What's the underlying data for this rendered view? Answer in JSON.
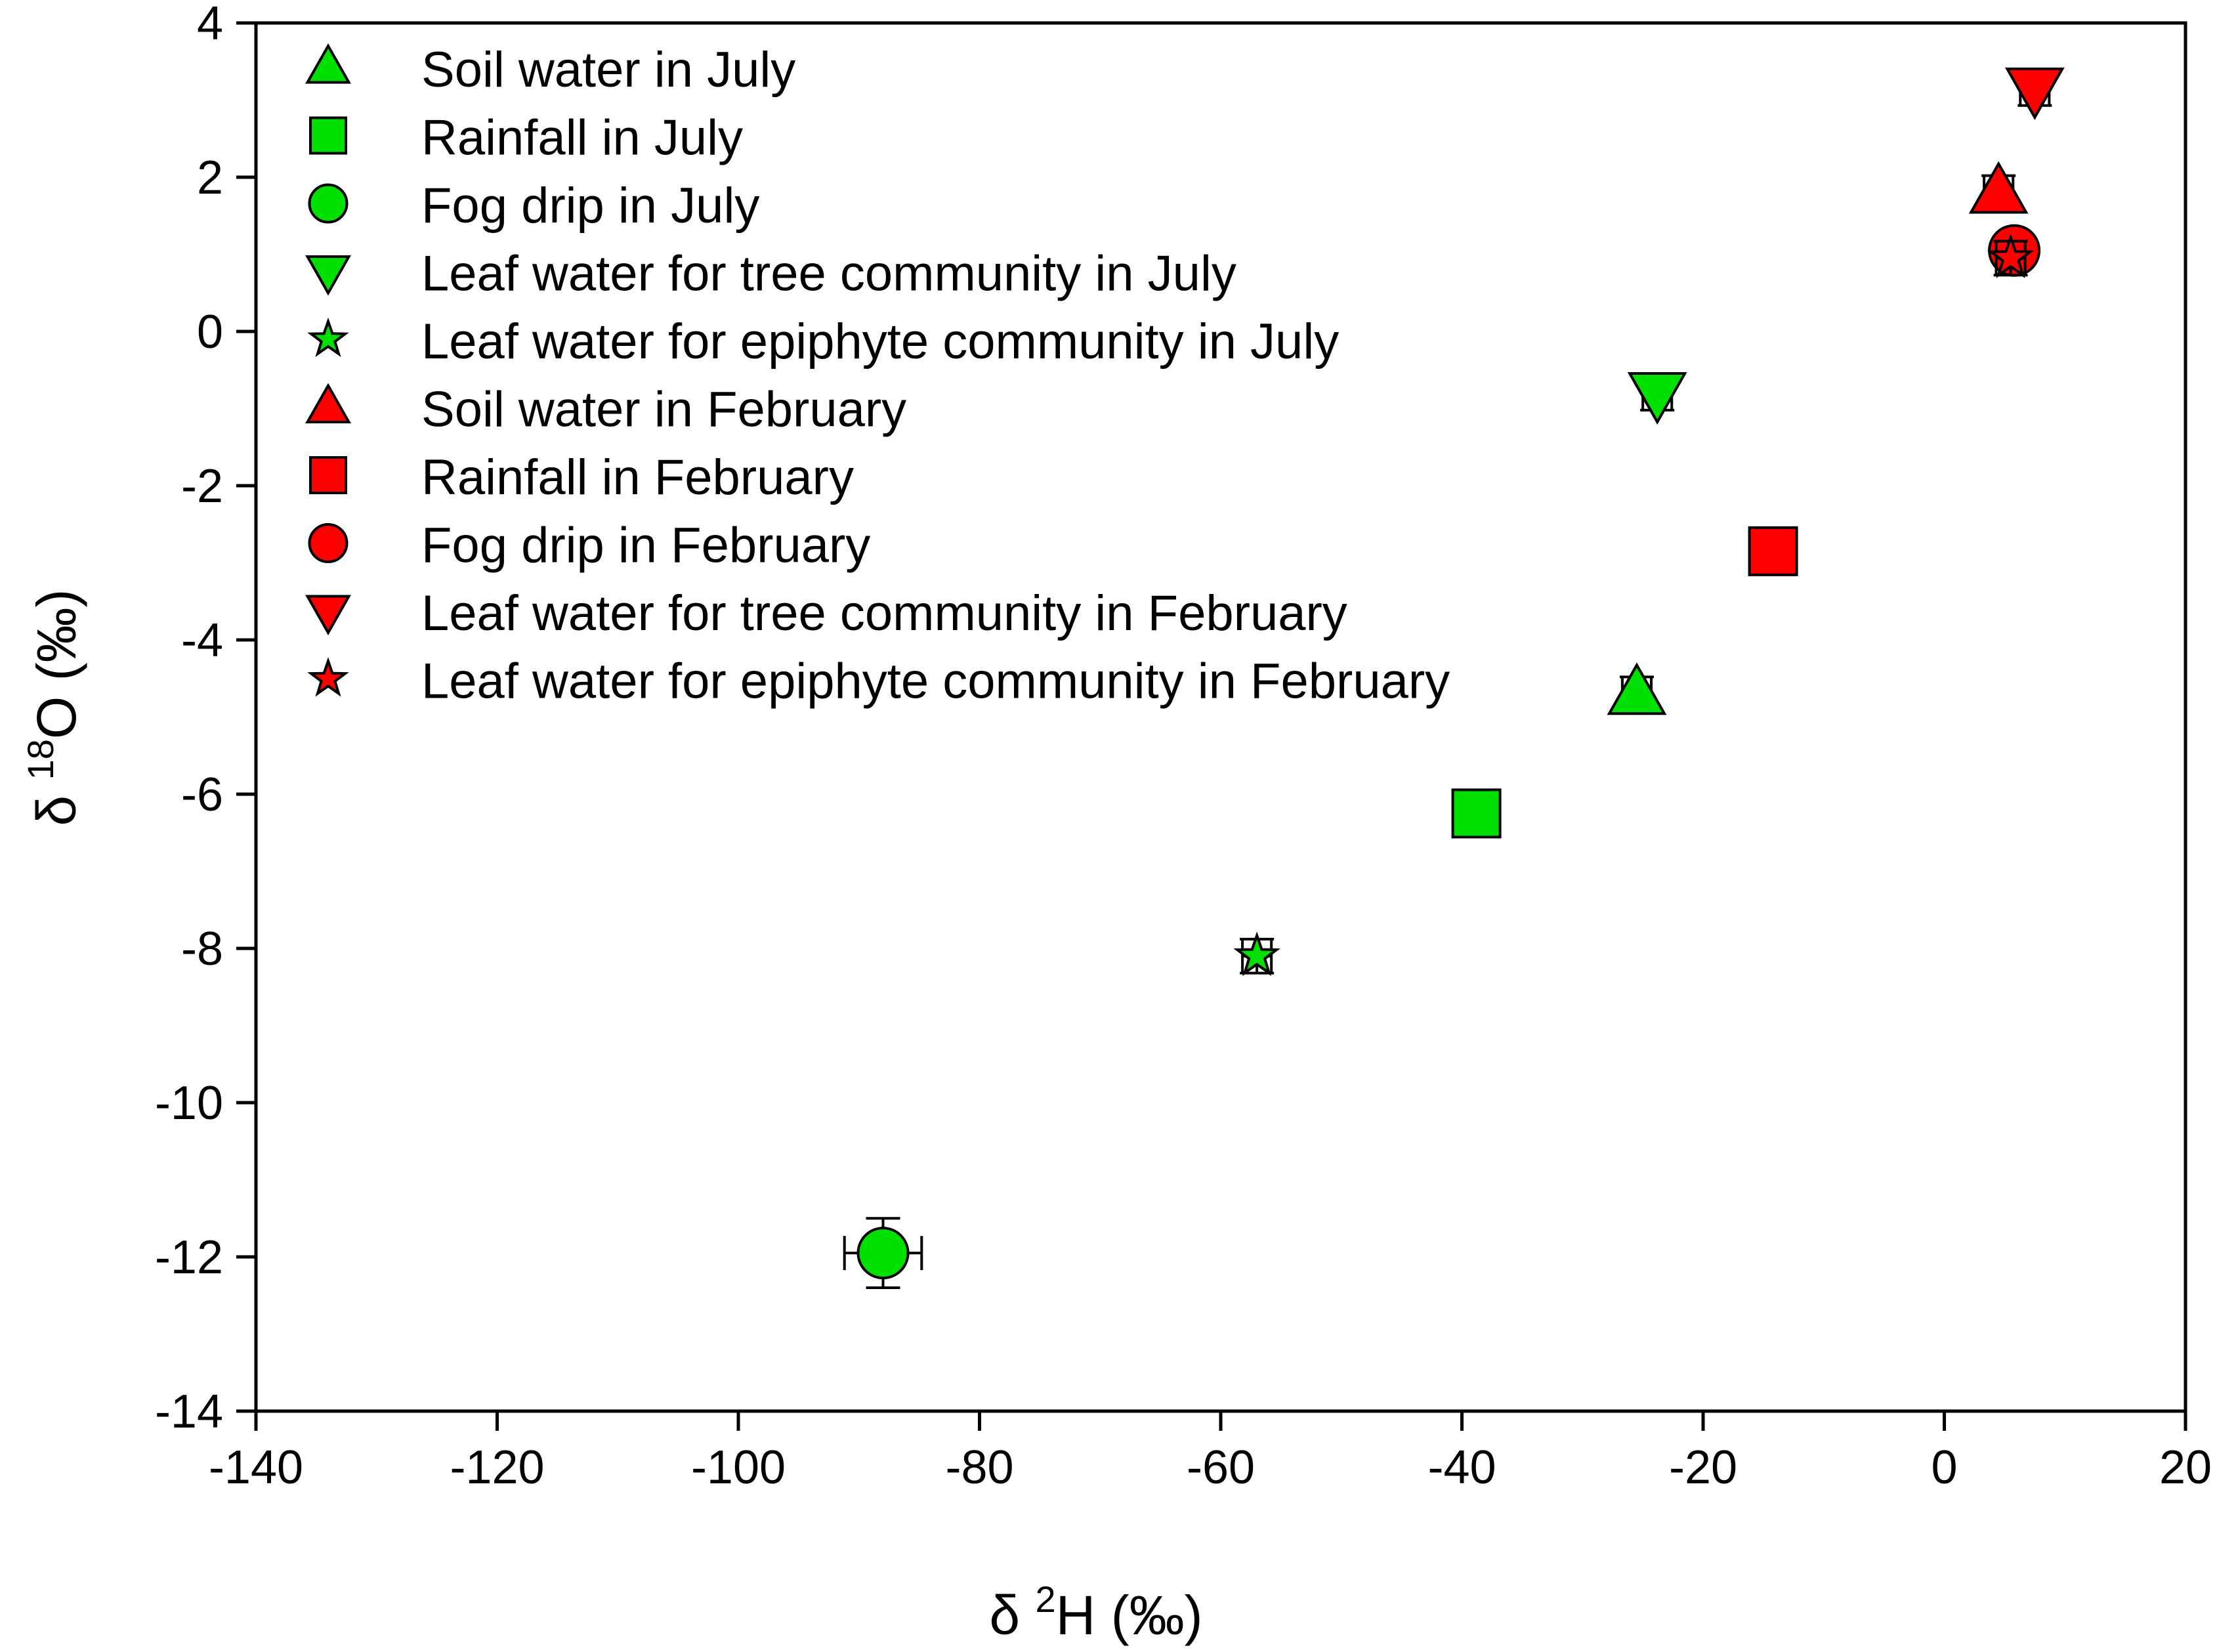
{
  "chart_data": {
    "type": "scatter",
    "title": "",
    "xlabel": {
      "prefix": "δ ",
      "sup": "2",
      "main": "H (‰)"
    },
    "ylabel": {
      "prefix": "δ ",
      "sup": "18",
      "main": "O (‰)"
    },
    "xlim": [
      -140,
      20
    ],
    "ylim": [
      -14,
      4
    ],
    "xticks": [
      -140,
      -120,
      -100,
      -80,
      -60,
      -40,
      -20,
      0,
      20
    ],
    "yticks": [
      -14,
      -12,
      -10,
      -8,
      -6,
      -4,
      -2,
      0,
      2,
      4
    ],
    "grid": false,
    "legend_position": "top-left",
    "colors": {
      "july": "#00e000",
      "february": "#ff0000",
      "stroke": "#000000"
    },
    "series": [
      {
        "name": "Soil water in July",
        "marker": "triangle-up",
        "color": "#00e000",
        "x": -25.5,
        "y": -4.7,
        "xerr": 1.2,
        "yerr": 0.22
      },
      {
        "name": "Rainfall in July",
        "marker": "square",
        "color": "#00e000",
        "x": -38.8,
        "y": -6.25,
        "xerr": 1.0,
        "yerr": 0.25
      },
      {
        "name": "Fog drip in July",
        "marker": "circle",
        "color": "#00e000",
        "x": -88.0,
        "y": -11.95,
        "xerr": 3.2,
        "yerr": 0.45
      },
      {
        "name": "Leaf water for tree community in July",
        "marker": "triangle-down",
        "color": "#00e000",
        "x": -23.8,
        "y": -0.8,
        "xerr": 1.2,
        "yerr": 0.22
      },
      {
        "name": "Leaf water for epiphyte community in July",
        "marker": "star",
        "color": "#00e000",
        "x": -57.0,
        "y": -8.1,
        "xerr": 1.2,
        "yerr": 0.22
      },
      {
        "name": "Soil water in February",
        "marker": "triangle-up",
        "color": "#ff0000",
        "x": 4.5,
        "y": 1.8,
        "xerr": 1.2,
        "yerr": 0.22
      },
      {
        "name": "Rainfall in February",
        "marker": "square",
        "color": "#ff0000",
        "x": -14.2,
        "y": -2.85,
        "xerr": 1.4,
        "yerr": 0.22
      },
      {
        "name": "Fog drip in February",
        "marker": "circle",
        "color": "#ff0000",
        "x": 5.8,
        "y": 1.05,
        "xerr": 1.3,
        "yerr": 0.22
      },
      {
        "name": "Leaf water for tree community in February",
        "marker": "triangle-down",
        "color": "#ff0000",
        "x": 7.5,
        "y": 3.15,
        "xerr": 1.2,
        "yerr": 0.22
      },
      {
        "name": "Leaf water for epiphyte community in February",
        "marker": "star",
        "color": "#ff0000",
        "x": 5.5,
        "y": 0.95,
        "xerr": 1.2,
        "yerr": 0.22
      }
    ]
  }
}
